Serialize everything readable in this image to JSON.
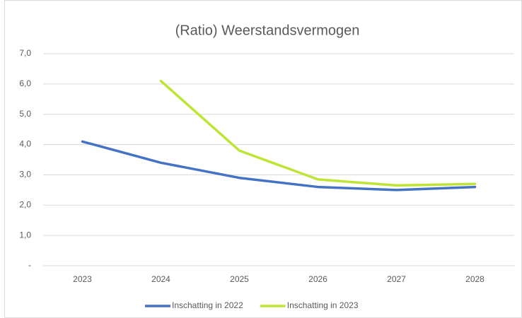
{
  "chart_data": {
    "type": "line",
    "title": "(Ratio) Weerstandsvermogen",
    "categories": [
      "2023",
      "2024",
      "2025",
      "2026",
      "2027",
      "2028"
    ],
    "series": [
      {
        "name": "Inschatting in 2022",
        "color": "#4472c4",
        "values": [
          4.1,
          3.4,
          2.9,
          2.6,
          2.5,
          2.6
        ]
      },
      {
        "name": "Inschatting in 2023",
        "color": "#bde535",
        "values": [
          null,
          6.1,
          3.8,
          2.85,
          2.65,
          2.7
        ]
      }
    ],
    "ylim": [
      0,
      7
    ],
    "yticks": [
      {
        "value": 0,
        "label": "-"
      },
      {
        "value": 1,
        "label": "1,0"
      },
      {
        "value": 2,
        "label": "2,0"
      },
      {
        "value": 3,
        "label": "3,0"
      },
      {
        "value": 4,
        "label": "4,0"
      },
      {
        "value": 5,
        "label": "5,0"
      },
      {
        "value": 6,
        "label": "6,0"
      },
      {
        "value": 7,
        "label": "7,0"
      }
    ],
    "grid": true,
    "legend": "bottom"
  }
}
